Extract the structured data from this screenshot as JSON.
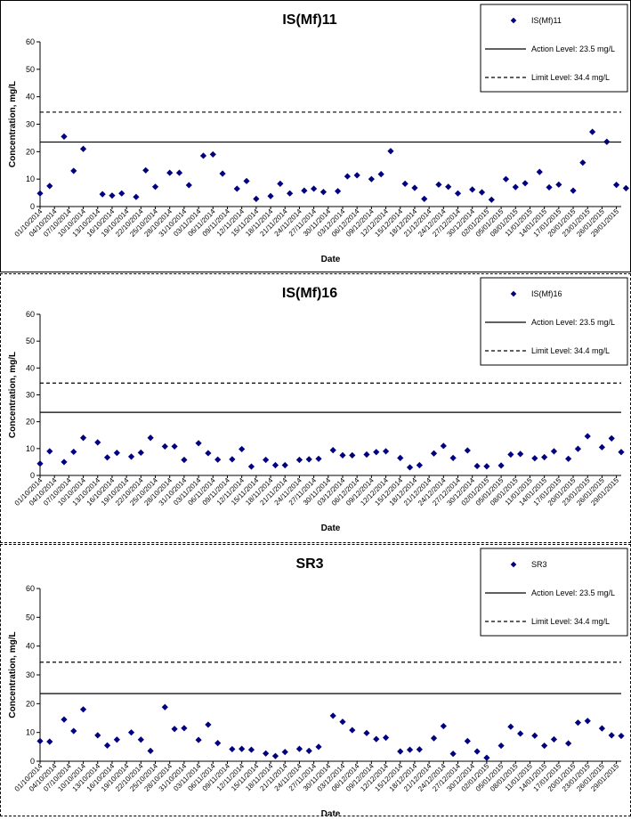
{
  "chart_data": [
    {
      "type": "scatter",
      "title": "IS(Mf)11",
      "xlabel": "Date",
      "ylabel": "Concentration, mg/L",
      "ylim": [
        0,
        60
      ],
      "yticks": [
        0,
        10,
        20,
        30,
        40,
        50,
        60
      ],
      "xlim": [
        "01/10/2014",
        "30/01/2015"
      ],
      "xtick_labels": [
        "01/10/2014",
        "04/10/2014",
        "07/10/2014",
        "10/10/2014",
        "13/10/2014",
        "16/10/2014",
        "19/10/2014",
        "22/10/2014",
        "25/10/2014",
        "28/10/2014",
        "31/10/2014",
        "03/11/2014",
        "06/11/2014",
        "09/11/2014",
        "12/11/2014",
        "15/11/2014",
        "18/11/2014",
        "21/11/2014",
        "24/11/2014",
        "27/11/2014",
        "30/11/2014",
        "03/12/2014",
        "06/12/2014",
        "09/12/2014",
        "12/12/2014",
        "15/12/2014",
        "18/12/2014",
        "21/12/2014",
        "24/12/2014",
        "27/12/2014",
        "30/12/2014",
        "02/01/2015",
        "05/01/2015",
        "08/01/2015",
        "11/01/2015",
        "14/01/2015",
        "17/01/2015",
        "20/01/2015",
        "23/01/2015",
        "26/01/2015",
        "29/01/2015"
      ],
      "grid": false,
      "legend_position": "top-right",
      "series": [
        {
          "name": "IS(Mf)11",
          "kind": "points",
          "color": "#000080",
          "x": [
            "01/10/2014",
            "03/10/2014",
            "06/10/2014",
            "08/10/2014",
            "10/10/2014",
            "14/10/2014",
            "16/10/2014",
            "18/10/2014",
            "21/10/2014",
            "23/10/2014",
            "25/10/2014",
            "28/10/2014",
            "30/10/2014",
            "01/11/2014",
            "04/11/2014",
            "06/11/2014",
            "08/11/2014",
            "11/11/2014",
            "13/11/2014",
            "15/11/2014",
            "18/11/2014",
            "20/11/2014",
            "22/11/2014",
            "25/11/2014",
            "27/11/2014",
            "29/11/2014",
            "02/12/2014",
            "04/12/2014",
            "06/12/2014",
            "09/12/2014",
            "11/12/2014",
            "13/12/2014",
            "16/12/2014",
            "18/12/2014",
            "20/12/2014",
            "23/12/2014",
            "25/12/2014",
            "27/12/2014",
            "30/12/2014",
            "01/01/2015",
            "03/01/2015",
            "06/01/2015",
            "08/01/2015",
            "10/01/2015",
            "13/01/2015",
            "15/01/2015",
            "17/01/2015",
            "20/01/2015",
            "22/01/2015",
            "24/01/2015",
            "27/01/2015",
            "29/01/2015",
            "31/01/2015"
          ],
          "y": [
            4.8,
            7.5,
            25.5,
            13.0,
            21.0,
            4.5,
            4.0,
            4.8,
            3.5,
            13.2,
            7.2,
            12.3,
            12.3,
            7.8,
            18.5,
            19.0,
            12.0,
            6.5,
            9.3,
            2.8,
            3.8,
            8.3,
            4.8,
            5.8,
            6.5,
            5.3,
            5.6,
            11.0,
            11.4,
            10.0,
            11.8,
            20.2,
            8.3,
            6.8,
            2.8,
            8.0,
            7.2,
            4.8,
            6.2,
            5.2,
            2.5,
            10.0,
            7.1,
            8.5,
            12.6,
            7.0,
            8.0,
            5.8,
            16.0,
            27.2,
            23.6,
            7.9,
            6.7
          ]
        },
        {
          "name": "Action Level: 23.5 mg/L",
          "kind": "hline",
          "y": 23.5,
          "color": "#000000",
          "dash": "solid"
        },
        {
          "name": "Limit Level: 34.4 mg/L",
          "kind": "hline",
          "y": 34.4,
          "color": "#000000",
          "dash": "dashed"
        }
      ]
    },
    {
      "type": "scatter",
      "title": "IS(Mf)16",
      "xlabel": "Date",
      "ylabel": "Concentration, mg/L",
      "ylim": [
        0,
        60
      ],
      "yticks": [
        0,
        10,
        20,
        30,
        40,
        50,
        60
      ],
      "xlim": [
        "01/10/2014",
        "30/01/2015"
      ],
      "xtick_labels": [
        "01/10/2014",
        "04/10/2014",
        "07/10/2014",
        "10/10/2014",
        "13/10/2014",
        "16/10/2014",
        "19/10/2014",
        "22/10/2014",
        "25/10/2014",
        "28/10/2014",
        "31/10/2014",
        "03/11/2014",
        "06/11/2014",
        "09/11/2014",
        "12/11/2014",
        "15/11/2014",
        "18/11/2014",
        "21/11/2014",
        "24/11/2014",
        "27/11/2014",
        "30/11/2014",
        "03/12/2014",
        "06/12/2014",
        "09/12/2014",
        "12/12/2014",
        "15/12/2014",
        "18/12/2014",
        "21/12/2014",
        "24/12/2014",
        "27/12/2014",
        "30/12/2014",
        "02/01/2015",
        "05/01/2015",
        "08/01/2015",
        "11/01/2015",
        "14/01/2015",
        "17/01/2015",
        "20/01/2015",
        "23/01/2015",
        "26/01/2015",
        "29/01/2015"
      ],
      "grid": false,
      "legend_position": "top-right",
      "series": [
        {
          "name": "IS(Mf)16",
          "kind": "points",
          "color": "#000080",
          "x": [
            "01/10/2014",
            "03/10/2014",
            "06/10/2014",
            "08/10/2014",
            "10/10/2014",
            "13/10/2014",
            "15/10/2014",
            "17/10/2014",
            "20/10/2014",
            "22/10/2014",
            "24/10/2014",
            "27/10/2014",
            "29/10/2014",
            "31/10/2014",
            "03/11/2014",
            "05/11/2014",
            "07/11/2014",
            "10/11/2014",
            "12/11/2014",
            "14/11/2014",
            "17/11/2014",
            "19/11/2014",
            "21/11/2014",
            "24/11/2014",
            "26/11/2014",
            "28/11/2014",
            "01/12/2014",
            "03/12/2014",
            "05/12/2014",
            "08/12/2014",
            "10/12/2014",
            "12/12/2014",
            "15/12/2014",
            "17/12/2014",
            "19/12/2014",
            "22/12/2014",
            "24/12/2014",
            "26/12/2014",
            "29/12/2014",
            "31/12/2014",
            "02/01/2015",
            "05/01/2015",
            "07/01/2015",
            "09/01/2015",
            "12/01/2015",
            "14/01/2015",
            "16/01/2015",
            "19/01/2015",
            "21/01/2015",
            "23/01/2015",
            "26/01/2015",
            "28/01/2015",
            "30/01/2015"
          ],
          "y": [
            4.4,
            9.0,
            5.0,
            8.8,
            14.0,
            12.3,
            6.7,
            8.4,
            7.0,
            8.5,
            14.0,
            10.8,
            10.8,
            5.8,
            12.0,
            8.3,
            5.9,
            6.0,
            9.8,
            3.3,
            5.8,
            3.8,
            3.8,
            5.8,
            6.0,
            6.2,
            9.4,
            7.5,
            7.5,
            7.8,
            8.7,
            9.0,
            6.5,
            3.0,
            3.8,
            8.2,
            11.0,
            6.5,
            9.3,
            3.5,
            3.4,
            3.7,
            7.8,
            8.0,
            6.4,
            6.8,
            9.0,
            6.2,
            9.9,
            14.6,
            10.5,
            13.8,
            8.7
          ]
        },
        {
          "name": "Action Level: 23.5 mg/L",
          "kind": "hline",
          "y": 23.5,
          "color": "#000000",
          "dash": "solid"
        },
        {
          "name": "Limit Level: 34.4 mg/L",
          "kind": "hline",
          "y": 34.4,
          "color": "#000000",
          "dash": "dashed"
        }
      ]
    },
    {
      "type": "scatter",
      "title": "SR3",
      "xlabel": "Date",
      "ylabel": "Concentration, mg/L",
      "ylim": [
        0,
        60
      ],
      "yticks": [
        0,
        10,
        20,
        30,
        40,
        50,
        60
      ],
      "xlim": [
        "01/10/2014",
        "30/01/2015"
      ],
      "xtick_labels": [
        "01/10/2014",
        "04/10/2014",
        "07/10/2014",
        "10/10/2014",
        "13/10/2014",
        "16/10/2014",
        "19/10/2014",
        "22/10/2014",
        "25/10/2014",
        "28/10/2014",
        "31/10/2014",
        "03/11/2014",
        "06/11/2014",
        "09/11/2014",
        "12/11/2014",
        "15/11/2014",
        "18/11/2014",
        "21/11/2014",
        "24/11/2014",
        "27/11/2014",
        "30/11/2014",
        "03/12/2014",
        "06/12/2014",
        "09/12/2014",
        "12/12/2014",
        "15/12/2014",
        "18/12/2014",
        "21/12/2014",
        "24/12/2014",
        "27/12/2014",
        "30/12/2014",
        "02/01/2015",
        "05/01/2015",
        "08/01/2015",
        "11/01/2015",
        "14/01/2015",
        "17/01/2015",
        "20/01/2015",
        "23/01/2015",
        "26/01/2015",
        "29/01/2015"
      ],
      "grid": false,
      "legend_position": "top-right",
      "series": [
        {
          "name": "SR3",
          "kind": "points",
          "color": "#000080",
          "x": [
            "01/10/2014",
            "03/10/2014",
            "06/10/2014",
            "08/10/2014",
            "10/10/2014",
            "13/10/2014",
            "15/10/2014",
            "17/10/2014",
            "20/10/2014",
            "22/10/2014",
            "24/10/2014",
            "27/10/2014",
            "29/10/2014",
            "31/10/2014",
            "03/11/2014",
            "05/11/2014",
            "07/11/2014",
            "10/11/2014",
            "12/11/2014",
            "14/11/2014",
            "17/11/2014",
            "19/11/2014",
            "21/11/2014",
            "24/11/2014",
            "26/11/2014",
            "28/11/2014",
            "01/12/2014",
            "03/12/2014",
            "05/12/2014",
            "08/12/2014",
            "10/12/2014",
            "12/12/2014",
            "15/12/2014",
            "17/12/2014",
            "19/12/2014",
            "22/12/2014",
            "24/12/2014",
            "26/12/2014",
            "29/12/2014",
            "31/12/2014",
            "02/01/2015",
            "05/01/2015",
            "07/01/2015",
            "09/01/2015",
            "12/01/2015",
            "14/01/2015",
            "16/01/2015",
            "19/01/2015",
            "21/01/2015",
            "23/01/2015",
            "26/01/2015",
            "28/01/2015",
            "30/01/2015"
          ],
          "y": [
            7.0,
            6.8,
            14.5,
            10.5,
            18.0,
            9.0,
            5.5,
            7.5,
            10.0,
            7.5,
            3.6,
            18.8,
            11.2,
            11.5,
            7.4,
            12.7,
            6.3,
            4.2,
            4.3,
            4.0,
            2.7,
            1.8,
            3.2,
            4.3,
            3.6,
            5.0,
            15.8,
            13.7,
            10.8,
            9.8,
            7.7,
            8.2,
            3.4,
            4.0,
            4.1,
            8.0,
            12.2,
            2.6,
            7.0,
            3.4,
            1.2,
            5.4,
            12.0,
            9.6,
            8.9,
            5.4,
            7.6,
            6.2,
            13.4,
            14.0,
            11.4,
            9.0,
            8.8
          ]
        },
        {
          "name": "Action Level: 23.5 mg/L",
          "kind": "hline",
          "y": 23.5,
          "color": "#000000",
          "dash": "solid"
        },
        {
          "name": "Limit Level: 34.4 mg/L",
          "kind": "hline",
          "y": 34.4,
          "color": "#000000",
          "dash": "dashed"
        }
      ]
    }
  ]
}
